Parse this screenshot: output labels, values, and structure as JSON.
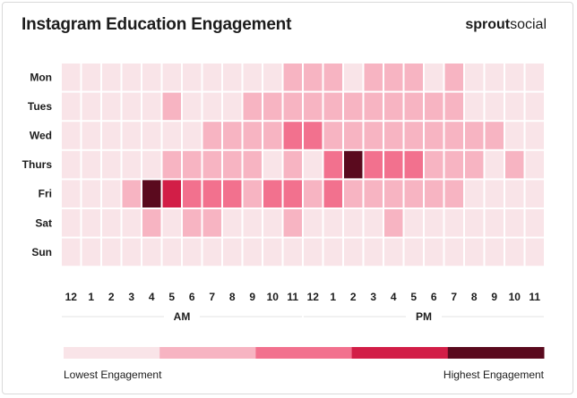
{
  "title": "Instagram Education Engagement",
  "brand": {
    "bold": "sprout",
    "light": "social"
  },
  "chart_data": {
    "type": "heatmap",
    "title": "Instagram Education Engagement",
    "y_categories": [
      "Mon",
      "Tues",
      "Wed",
      "Thurs",
      "Fri",
      "Sat",
      "Sun"
    ],
    "x_categories": [
      "12",
      "1",
      "2",
      "3",
      "4",
      "5",
      "6",
      "7",
      "8",
      "9",
      "10",
      "11",
      "12",
      "1",
      "2",
      "3",
      "4",
      "5",
      "6",
      "7",
      "8",
      "9",
      "10",
      "11"
    ],
    "periods": [
      {
        "label": "AM",
        "span": [
          0,
          11
        ]
      },
      {
        "label": "PM",
        "span": [
          12,
          23
        ]
      }
    ],
    "scale_levels": 5,
    "values": [
      [
        0,
        0,
        0,
        0,
        0,
        0,
        0,
        0,
        0,
        0,
        0,
        1,
        1,
        1,
        0,
        1,
        1,
        1,
        0,
        1,
        0,
        0,
        0,
        0
      ],
      [
        0,
        0,
        0,
        0,
        0,
        1,
        0,
        0,
        0,
        1,
        1,
        1,
        1,
        1,
        1,
        1,
        1,
        1,
        1,
        1,
        0,
        0,
        0,
        0
      ],
      [
        0,
        0,
        0,
        0,
        0,
        0,
        0,
        1,
        1,
        1,
        1,
        2,
        2,
        1,
        1,
        1,
        1,
        1,
        1,
        1,
        1,
        1,
        0,
        0
      ],
      [
        0,
        0,
        0,
        0,
        0,
        1,
        1,
        1,
        1,
        1,
        0,
        1,
        0,
        2,
        4,
        2,
        2,
        2,
        1,
        1,
        1,
        0,
        1,
        0
      ],
      [
        0,
        0,
        0,
        1,
        4,
        3,
        2,
        2,
        2,
        1,
        2,
        2,
        1,
        2,
        1,
        1,
        1,
        1,
        1,
        1,
        0,
        0,
        0,
        0
      ],
      [
        0,
        0,
        0,
        0,
        1,
        0,
        1,
        1,
        0,
        0,
        0,
        1,
        0,
        0,
        0,
        0,
        1,
        0,
        0,
        0,
        0,
        0,
        0,
        0
      ],
      [
        0,
        0,
        0,
        0,
        0,
        0,
        0,
        0,
        0,
        0,
        0,
        0,
        0,
        0,
        0,
        0,
        0,
        0,
        0,
        0,
        0,
        0,
        0,
        0
      ]
    ],
    "colors": [
      "#f9e4e8",
      "#f7b4c2",
      "#f2718e",
      "#d21e47",
      "#5a0a1e"
    ],
    "legend": {
      "low": "Lowest Engagement",
      "high": "Highest Engagement"
    }
  }
}
